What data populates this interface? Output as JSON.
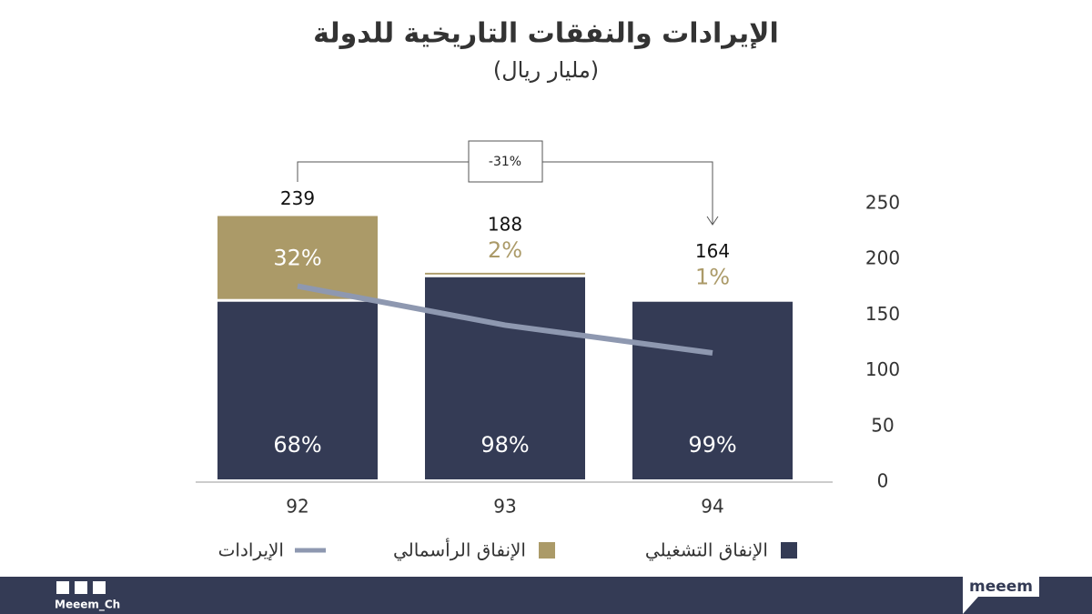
{
  "chart_data": {
    "type": "stacked_bar_line",
    "title": "الإيرادات والنفقات التاريخية للدولة",
    "subtitle": "(مليار ريال)",
    "categories": [
      "92",
      "93",
      "94"
    ],
    "series": [
      {
        "name": "الإنفاق التشغيلي",
        "color": "#343b55",
        "type": "bar",
        "values": [
          162,
          184,
          162
        ],
        "share_labels": [
          "68%",
          "98%",
          "99%"
        ]
      },
      {
        "name": "الإنفاق الرأسمالي",
        "color": "#ab9a68",
        "type": "bar",
        "values": [
          77,
          4,
          2
        ],
        "share_labels": [
          "32%",
          "2%",
          "1%"
        ]
      },
      {
        "name": "الإيرادات",
        "color": "#8e98b0",
        "type": "line",
        "values": [
          176,
          141,
          116
        ]
      }
    ],
    "totals": [
      239,
      188,
      164
    ],
    "annotation": "-31%",
    "ylim": [
      0,
      250
    ],
    "yticks": [
      0,
      50,
      100,
      150,
      200,
      250
    ],
    "y_axis_side": "right",
    "grid": false,
    "brand": "Meeem_Ch",
    "logo": "meeem"
  }
}
